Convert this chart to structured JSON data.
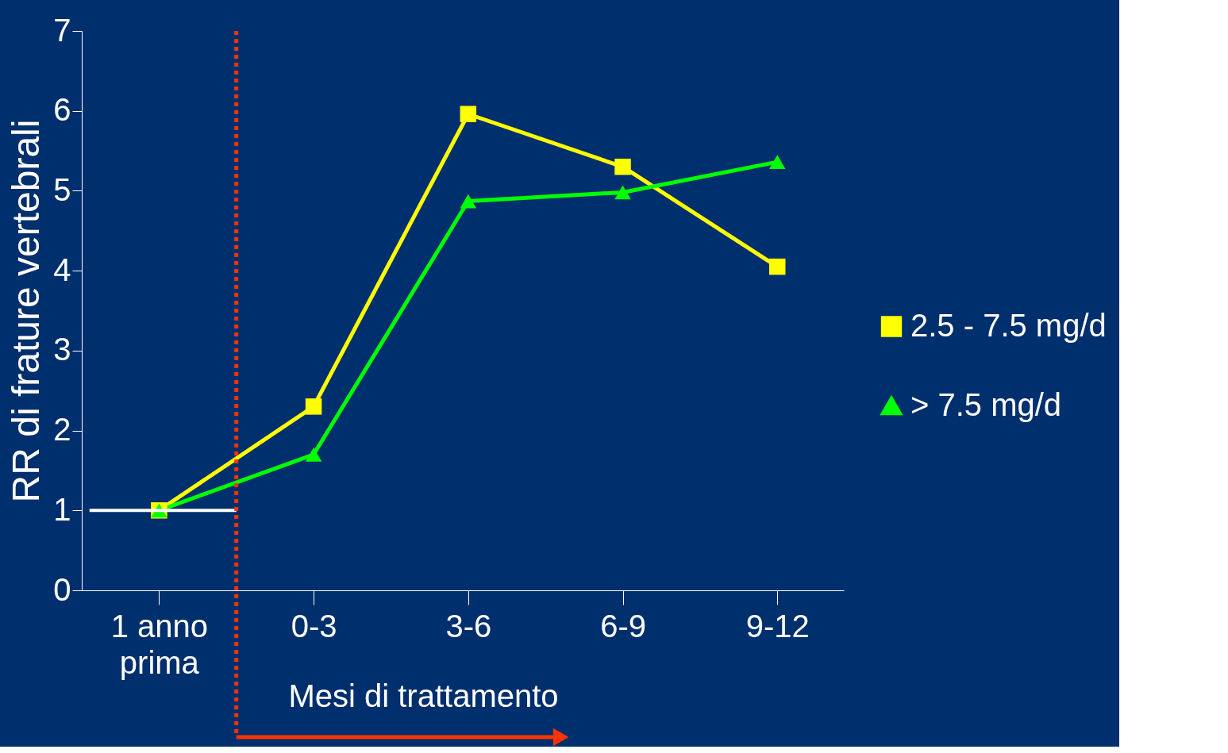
{
  "chart_data": {
    "type": "line",
    "xlabel": "Mesi di trattamento",
    "ylabel": "RR di frature vertebrali",
    "categories": [
      "1 anno\nprima",
      "0-3",
      "3-6",
      "6-9",
      "9-12"
    ],
    "series": [
      {
        "name": "2.5 - 7.5  mg/d",
        "color": "#ffff00",
        "marker": "square",
        "values": [
          1.0,
          2.3,
          5.96,
          5.3,
          4.05
        ]
      },
      {
        "name": "> 7.5   mg/d",
        "color": "#00ff00",
        "marker": "triangle",
        "values": [
          1.0,
          1.7,
          4.87,
          4.98,
          5.36
        ]
      }
    ],
    "ylim": [
      0,
      7
    ],
    "yticks": [
      0,
      1,
      2,
      3,
      4,
      5,
      6,
      7
    ],
    "grid": false,
    "legend": "right",
    "ref_lines": [
      {
        "axis": "y",
        "value": 1,
        "color": "#ffffff",
        "line_style": "solid"
      },
      {
        "axis": "x",
        "value": "0-3",
        "color": "#ff3300",
        "line_style": "dotted"
      }
    ]
  }
}
